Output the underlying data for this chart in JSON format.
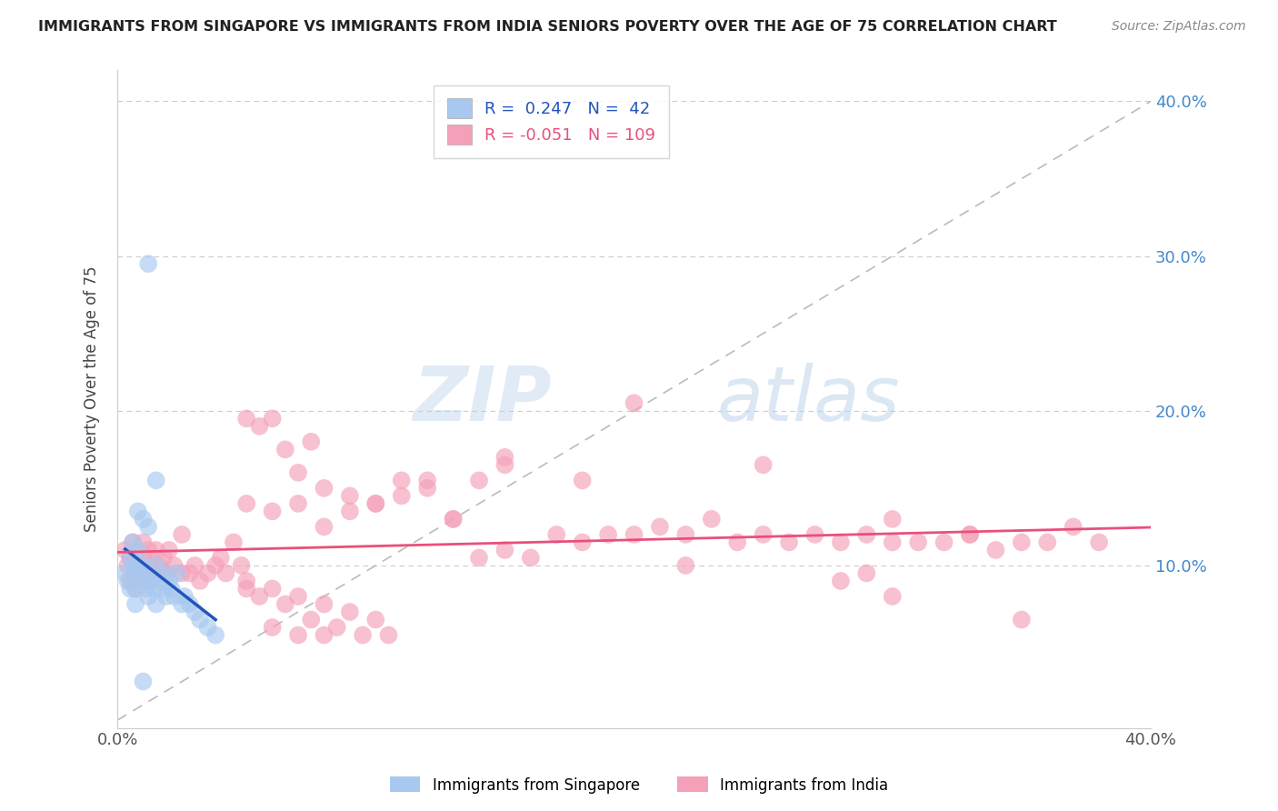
{
  "title": "IMMIGRANTS FROM SINGAPORE VS IMMIGRANTS FROM INDIA SENIORS POVERTY OVER THE AGE OF 75 CORRELATION CHART",
  "source": "Source: ZipAtlas.com",
  "ylabel": "Seniors Poverty Over the Age of 75",
  "ytick_values": [
    0.0,
    0.1,
    0.2,
    0.3,
    0.4
  ],
  "xtick_values": [
    0.0,
    0.05,
    0.1,
    0.15,
    0.2,
    0.25,
    0.3,
    0.35,
    0.4
  ],
  "xlim": [
    0.0,
    0.4
  ],
  "ylim": [
    -0.005,
    0.42
  ],
  "legend1_label": "Immigrants from Singapore",
  "legend2_label": "Immigrants from India",
  "R_singapore": 0.247,
  "N_singapore": 42,
  "R_india": -0.051,
  "N_india": 109,
  "color_singapore": "#A8C8F0",
  "color_india": "#F4A0B8",
  "color_singapore_line": "#2255BB",
  "color_india_line": "#E8507A",
  "watermark_zip": "ZIP",
  "watermark_atlas": "atlas",
  "singapore_x": [
    0.003,
    0.004,
    0.005,
    0.005,
    0.006,
    0.006,
    0.007,
    0.007,
    0.007,
    0.008,
    0.008,
    0.009,
    0.01,
    0.01,
    0.011,
    0.012,
    0.012,
    0.013,
    0.014,
    0.015,
    0.015,
    0.016,
    0.017,
    0.018,
    0.019,
    0.02,
    0.021,
    0.022,
    0.023,
    0.025,
    0.026,
    0.028,
    0.03,
    0.032,
    0.035,
    0.038,
    0.008,
    0.01,
    0.012,
    0.015,
    0.01,
    0.012
  ],
  "singapore_y": [
    0.095,
    0.09,
    0.105,
    0.085,
    0.1,
    0.115,
    0.095,
    0.085,
    0.075,
    0.1,
    0.11,
    0.095,
    0.1,
    0.09,
    0.085,
    0.08,
    0.095,
    0.09,
    0.085,
    0.1,
    0.075,
    0.09,
    0.085,
    0.095,
    0.08,
    0.09,
    0.085,
    0.08,
    0.095,
    0.075,
    0.08,
    0.075,
    0.07,
    0.065,
    0.06,
    0.055,
    0.135,
    0.13,
    0.125,
    0.155,
    0.025,
    0.295
  ],
  "india_x": [
    0.003,
    0.004,
    0.005,
    0.005,
    0.006,
    0.007,
    0.007,
    0.008,
    0.009,
    0.01,
    0.01,
    0.011,
    0.012,
    0.012,
    0.013,
    0.014,
    0.015,
    0.016,
    0.017,
    0.018,
    0.019,
    0.02,
    0.022,
    0.025,
    0.025,
    0.028,
    0.03,
    0.032,
    0.035,
    0.038,
    0.04,
    0.042,
    0.045,
    0.048,
    0.05,
    0.055,
    0.06,
    0.065,
    0.07,
    0.075,
    0.08,
    0.09,
    0.1,
    0.11,
    0.12,
    0.13,
    0.14,
    0.15,
    0.16,
    0.17,
    0.18,
    0.19,
    0.2,
    0.21,
    0.22,
    0.23,
    0.24,
    0.25,
    0.26,
    0.27,
    0.28,
    0.29,
    0.3,
    0.31,
    0.32,
    0.33,
    0.34,
    0.35,
    0.36,
    0.37,
    0.05,
    0.06,
    0.07,
    0.08,
    0.09,
    0.1,
    0.11,
    0.12,
    0.13,
    0.14,
    0.05,
    0.06,
    0.07,
    0.08,
    0.09,
    0.1,
    0.06,
    0.07,
    0.08,
    0.05,
    0.055,
    0.065,
    0.075,
    0.085,
    0.095,
    0.105,
    0.15,
    0.2,
    0.25,
    0.3,
    0.29,
    0.33,
    0.35,
    0.3,
    0.38,
    0.15,
    0.18,
    0.22,
    0.28
  ],
  "india_y": [
    0.11,
    0.1,
    0.105,
    0.09,
    0.115,
    0.095,
    0.085,
    0.1,
    0.095,
    0.105,
    0.115,
    0.095,
    0.09,
    0.11,
    0.1,
    0.095,
    0.11,
    0.1,
    0.095,
    0.105,
    0.095,
    0.11,
    0.1,
    0.12,
    0.095,
    0.095,
    0.1,
    0.09,
    0.095,
    0.1,
    0.105,
    0.095,
    0.115,
    0.1,
    0.195,
    0.19,
    0.195,
    0.175,
    0.16,
    0.18,
    0.125,
    0.135,
    0.14,
    0.145,
    0.15,
    0.13,
    0.105,
    0.11,
    0.105,
    0.12,
    0.115,
    0.12,
    0.12,
    0.125,
    0.12,
    0.13,
    0.115,
    0.12,
    0.115,
    0.12,
    0.115,
    0.12,
    0.115,
    0.115,
    0.115,
    0.12,
    0.11,
    0.115,
    0.115,
    0.125,
    0.14,
    0.135,
    0.14,
    0.15,
    0.145,
    0.14,
    0.155,
    0.155,
    0.13,
    0.155,
    0.09,
    0.085,
    0.08,
    0.075,
    0.07,
    0.065,
    0.06,
    0.055,
    0.055,
    0.085,
    0.08,
    0.075,
    0.065,
    0.06,
    0.055,
    0.055,
    0.165,
    0.205,
    0.165,
    0.13,
    0.095,
    0.12,
    0.065,
    0.08,
    0.115,
    0.17,
    0.155,
    0.1,
    0.09
  ]
}
